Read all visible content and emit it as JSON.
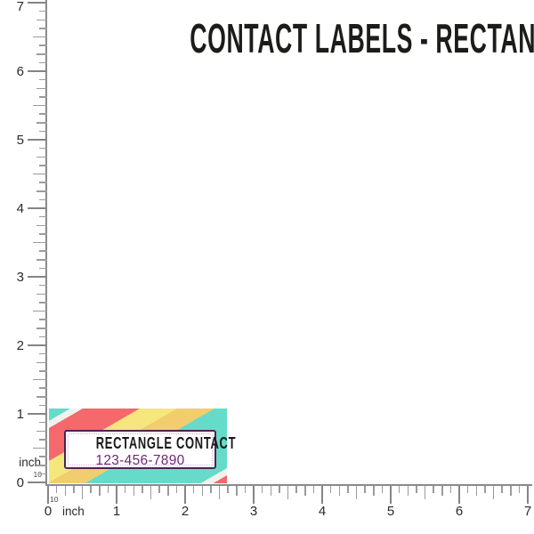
{
  "title": {
    "text": "CONTACT LABELS - RECTANGLE"
  },
  "sticker": {
    "name": "RECTANGLE CONTACT",
    "phone": "123-456-7890",
    "name_color": "#1a1a1a",
    "phone_color": "#6e2a74",
    "box_border_color": "#4d2253",
    "dotted_border_color": "#d9aed3",
    "stripe_colors": {
      "teal": "#66dbc9",
      "white": "#f1f2ee",
      "coral": "#f4696b",
      "yellow": "#f6e67e",
      "gold": "#f1cd6d"
    }
  },
  "vertical_ruler": {
    "numbers": [
      "7",
      "6",
      "5",
      "4",
      "3",
      "2",
      "1",
      "0"
    ],
    "unit_label": "inch",
    "subscale_label": "10"
  },
  "horizontal_ruler": {
    "numbers": [
      "0",
      "1",
      "2",
      "3",
      "4",
      "5",
      "6",
      "7"
    ],
    "unit_label": "inch",
    "subscale_label": "10"
  }
}
